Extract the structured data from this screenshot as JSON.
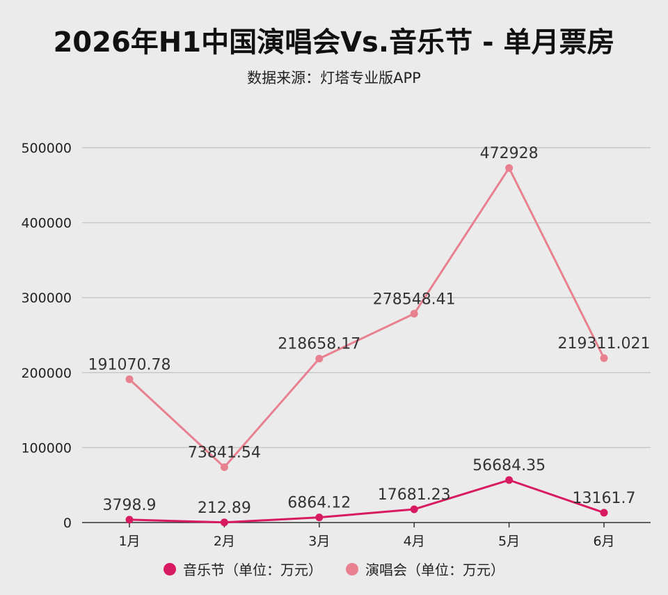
{
  "header": {
    "title": "2026年H1中国演唱会Vs.音乐节 - 单月票房",
    "subtitle": "数据来源：灯塔专业版APP"
  },
  "chart_data": {
    "type": "line",
    "categories": [
      "1月",
      "2月",
      "3月",
      "4月",
      "5月",
      "6月"
    ],
    "y_ticks": [
      "0",
      "100000",
      "200000",
      "300000",
      "400000",
      "500000"
    ],
    "ylim": [
      0,
      500000
    ],
    "grid": true,
    "legend_position": "bottom",
    "series": [
      {
        "name": "音乐节（单位：万元）",
        "color": "#d81b60",
        "values": [
          3798.9,
          212.89,
          6864.12,
          17681.23,
          56684.35,
          13161.7
        ],
        "labels": [
          "3798.9",
          "212.89",
          "6864.12",
          "17681.23",
          "56684.35",
          "13161.7"
        ]
      },
      {
        "name": "演唱会（单位：万元）",
        "color": "#e8808f",
        "values": [
          191070.78,
          73841.54,
          218658.17,
          278548.41,
          472928,
          219311.021
        ],
        "labels": [
          "191070.78",
          "73841.54",
          "218658.17",
          "278548.41",
          "472928",
          "219311.021"
        ]
      }
    ]
  }
}
